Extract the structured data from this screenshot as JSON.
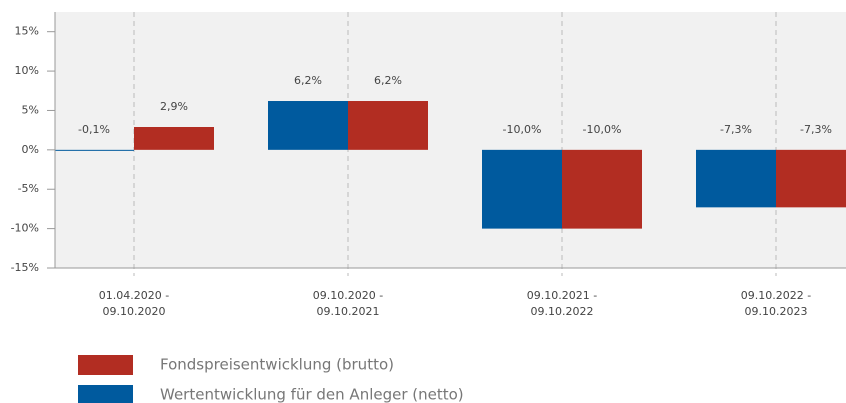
{
  "chart_data": {
    "type": "bar",
    "categories": [
      "01.04.2020 -\n09.10.2020",
      "09.10.2020 -\n09.10.2021",
      "09.10.2021 -\n09.10.2022",
      "09.10.2022 -\n09.10.2023"
    ],
    "series": [
      {
        "name": "Wertentwicklung für den Anleger (netto)",
        "color": "#005a9e",
        "values": [
          -0.1,
          6.2,
          -10.0,
          -7.3
        ],
        "value_labels": [
          "-0,1%",
          "6,2%",
          "-10,0%",
          "-7,3%"
        ]
      },
      {
        "name": "Fondspreisentwicklung (brutto)",
        "color": "#b22d22",
        "values": [
          2.9,
          6.2,
          -10.0,
          -7.3
        ],
        "value_labels": [
          "2,9%",
          "6,2%",
          "-10,0%",
          "-7,3%"
        ]
      }
    ],
    "ylim": [
      -15,
      17.5
    ],
    "yticks": [
      {
        "value": -15,
        "label": "-15%"
      },
      {
        "value": -10,
        "label": "-10%"
      },
      {
        "value": -5,
        "label": "-5%"
      },
      {
        "value": 0,
        "label": "0%"
      },
      {
        "value": 5,
        "label": "5%"
      },
      {
        "value": 10,
        "label": "10%"
      },
      {
        "value": 15,
        "label": "15%"
      }
    ],
    "grid": true
  }
}
